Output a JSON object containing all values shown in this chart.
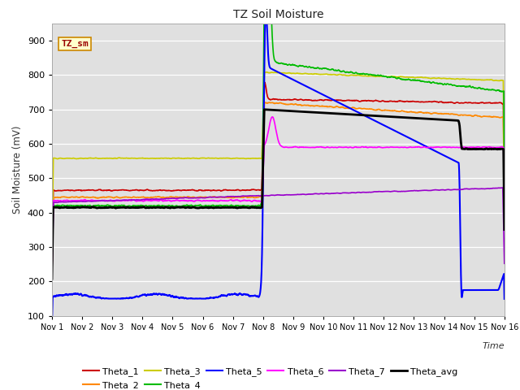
{
  "title": "TZ Soil Moisture",
  "xlabel": "Time",
  "ylabel": "Soil Moisture (mV)",
  "ylim": [
    100,
    950
  ],
  "yticks": [
    100,
    200,
    300,
    400,
    500,
    600,
    700,
    800,
    900
  ],
  "xlim": [
    0,
    15
  ],
  "xtick_labels": [
    "Nov 1",
    "Nov 2",
    "Nov 3",
    "Nov 4",
    "Nov 5",
    "Nov 6",
    "Nov 7",
    "Nov 8",
    "Nov 9",
    "Nov 10",
    "Nov 11",
    "Nov 12",
    "Nov 13",
    "Nov 14",
    "Nov 15",
    "Nov 16"
  ],
  "bg_color": "#e0e0e0",
  "fig_color": "#ffffff",
  "legend_label": "TZ_sm",
  "series": {
    "Theta_1": {
      "color": "#cc0000",
      "lw": 1.2
    },
    "Theta_2": {
      "color": "#ff8800",
      "lw": 1.2
    },
    "Theta_3": {
      "color": "#cccc00",
      "lw": 1.2
    },
    "Theta_4": {
      "color": "#00bb00",
      "lw": 1.2
    },
    "Theta_5": {
      "color": "#0000ff",
      "lw": 1.5
    },
    "Theta_6": {
      "color": "#ff00ff",
      "lw": 1.2
    },
    "Theta_7": {
      "color": "#9900cc",
      "lw": 1.2
    },
    "Theta_avg": {
      "color": "#000000",
      "lw": 2.0
    }
  }
}
